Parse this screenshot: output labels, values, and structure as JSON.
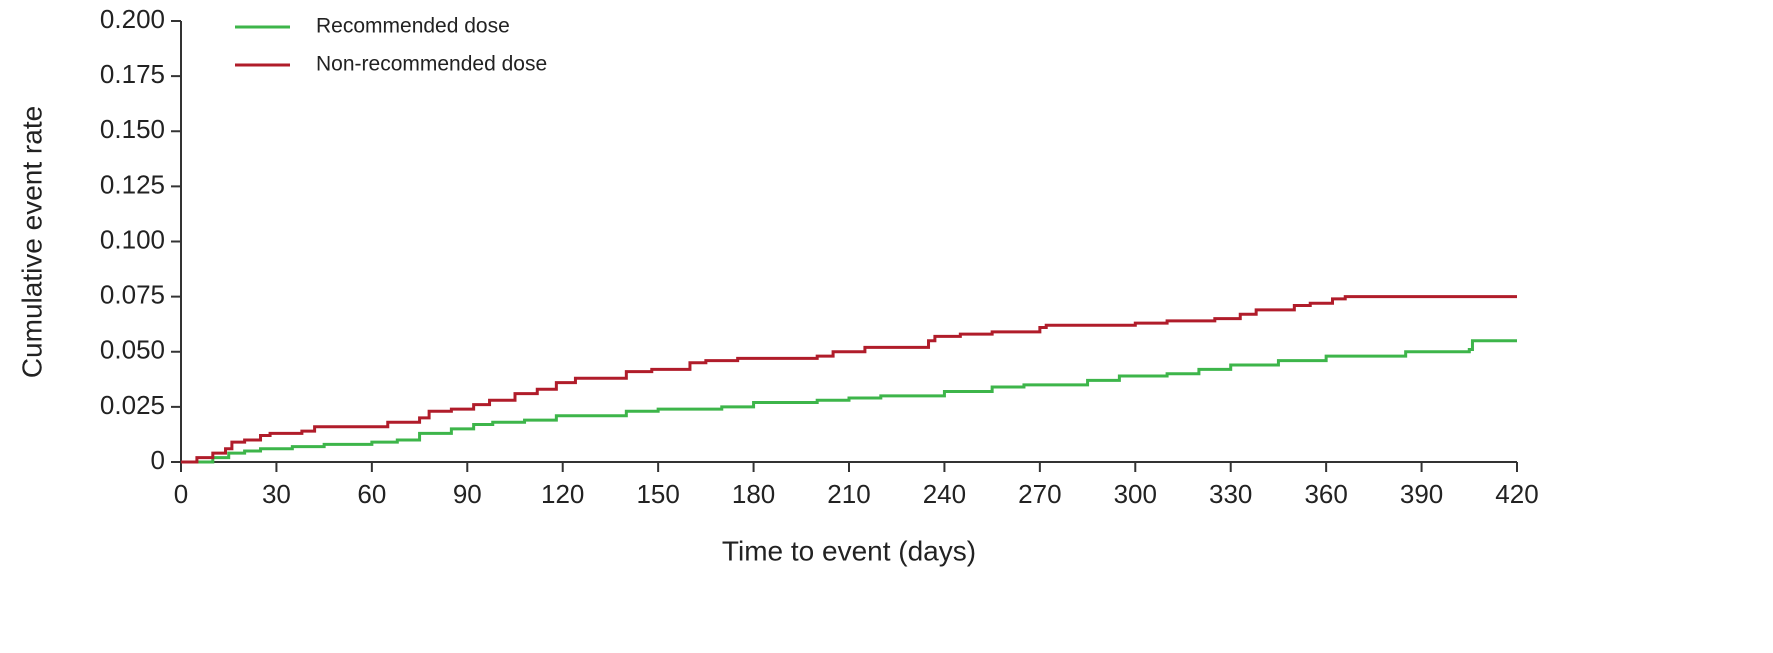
{
  "chart_data": {
    "type": "line",
    "step": true,
    "x_label": "Time to event (days)",
    "y_label": "Cumulative event rate",
    "xlim": [
      0,
      420
    ],
    "xticks": [
      0,
      30,
      60,
      90,
      120,
      150,
      180,
      210,
      240,
      270,
      300,
      330,
      360,
      390,
      420
    ],
    "ylim": [
      0,
      0.2
    ],
    "yticks": [
      0,
      0.025,
      {
        "value": 0.05,
        "label": "0.050"
      },
      0.075,
      {
        "value": 0.1,
        "label": "0.100"
      },
      0.125,
      {
        "value": 0.15,
        "label": "0.150"
      },
      0.175,
      {
        "value": 0.2,
        "label": "0.200"
      }
    ],
    "grid": false,
    "legend": "upper left",
    "series": [
      {
        "name": "Recommended dose",
        "color": "#3db54a",
        "x": [
          0,
          10,
          15,
          20,
          25,
          35,
          45,
          60,
          68,
          75,
          85,
          92,
          98,
          108,
          118,
          140,
          150,
          170,
          180,
          200,
          210,
          220,
          240,
          255,
          265,
          285,
          295,
          310,
          320,
          330,
          345,
          360,
          385,
          405,
          406,
          420
        ],
        "values": [
          0,
          0.002,
          0.004,
          0.005,
          0.006,
          0.007,
          0.008,
          0.009,
          0.01,
          0.013,
          0.015,
          0.017,
          0.018,
          0.019,
          0.021,
          0.023,
          0.024,
          0.025,
          0.027,
          0.028,
          0.029,
          0.03,
          0.032,
          0.034,
          0.035,
          0.037,
          0.039,
          0.04,
          0.042,
          0.044,
          0.046,
          0.048,
          0.05,
          0.051,
          0.055,
          0.055
        ]
      },
      {
        "name": "Non-recommended dose",
        "color": "#b01c2a",
        "x": [
          0,
          5,
          10,
          14,
          16,
          20,
          25,
          28,
          38,
          42,
          60,
          65,
          75,
          78,
          85,
          92,
          97,
          105,
          112,
          118,
          124,
          140,
          148,
          160,
          165,
          175,
          200,
          205,
          215,
          235,
          237,
          245,
          255,
          270,
          272,
          300,
          310,
          325,
          333,
          338,
          350,
          355,
          362,
          366,
          420
        ],
        "values": [
          0,
          0.002,
          0.004,
          0.006,
          0.009,
          0.01,
          0.012,
          0.013,
          0.014,
          0.016,
          0.016,
          0.018,
          0.02,
          0.023,
          0.024,
          0.026,
          0.028,
          0.031,
          0.033,
          0.036,
          0.038,
          0.041,
          0.042,
          0.045,
          0.046,
          0.047,
          0.048,
          0.05,
          0.052,
          0.055,
          0.057,
          0.058,
          0.059,
          0.061,
          0.062,
          0.063,
          0.064,
          0.065,
          0.067,
          0.069,
          0.071,
          0.072,
          0.074,
          0.075,
          0.075
        ]
      }
    ]
  }
}
